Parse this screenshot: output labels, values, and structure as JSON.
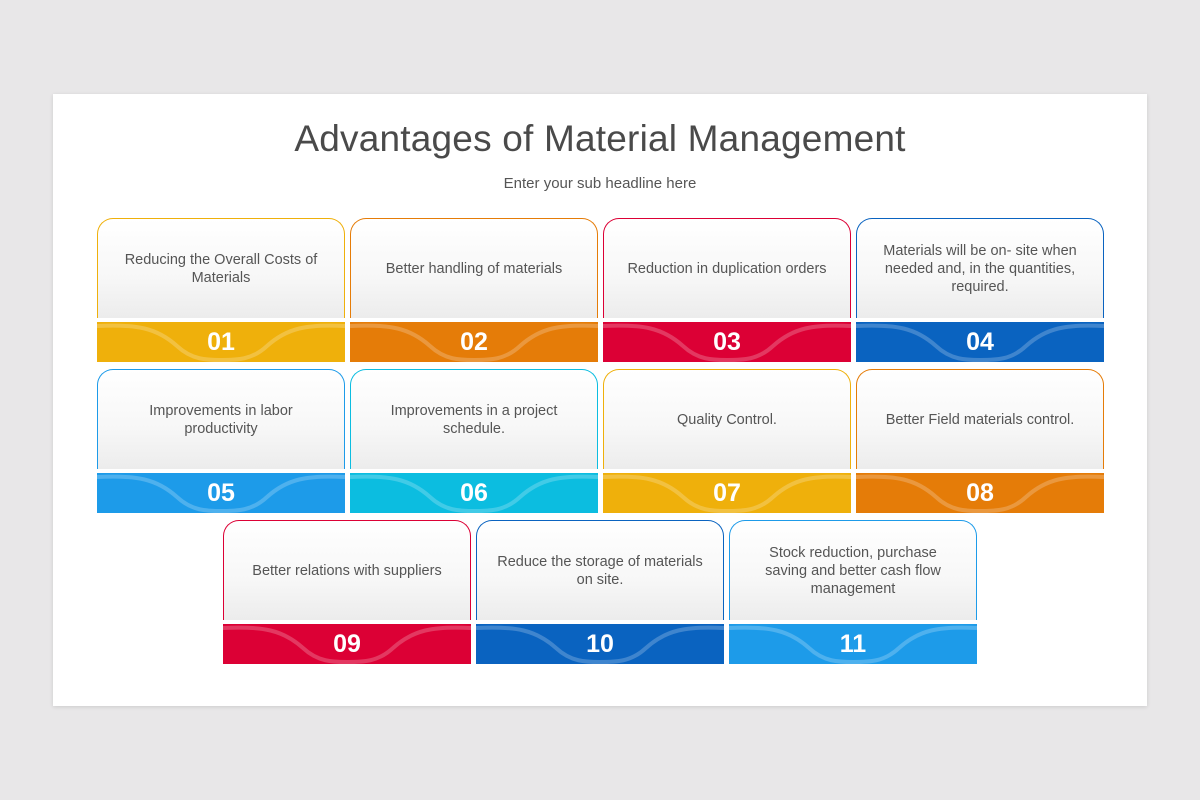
{
  "header": {
    "title": "Advantages of Material Management",
    "subtitle": "Enter your sub headline here"
  },
  "colors": {
    "yellow": "#efb00b",
    "orange": "#e57c08",
    "red": "#dc0035",
    "dark_blue": "#0a63c0",
    "blue": "#1d9be9",
    "cyan": "#0cbde0"
  },
  "cards": [
    {
      "number": "01",
      "text": "Reducing the Overall Costs of Materials",
      "color": "#efb00b"
    },
    {
      "number": "02",
      "text": "Better handling of materials",
      "color": "#e57c08"
    },
    {
      "number": "03",
      "text": "Reduction in duplication orders",
      "color": "#dc0035"
    },
    {
      "number": "04",
      "text": "Materials will be on- site when needed and, in the quantities, required.",
      "color": "#0a63c0"
    },
    {
      "number": "05",
      "text": "Improvements in labor productivity",
      "color": "#1d9be9"
    },
    {
      "number": "06",
      "text": "Improvements in a project schedule.",
      "color": "#0cbde0"
    },
    {
      "number": "07",
      "text": "Quality Control.",
      "color": "#efb00b"
    },
    {
      "number": "08",
      "text": "Better Field materials control.",
      "color": "#e57c08"
    },
    {
      "number": "09",
      "text": "Better relations with suppliers",
      "color": "#dc0035"
    },
    {
      "number": "10",
      "text": "Reduce the storage of materials on site.",
      "color": "#0a63c0"
    },
    {
      "number": "11",
      "text": "Stock reduction, purchase saving and better cash flow management",
      "color": "#1d9be9"
    }
  ]
}
